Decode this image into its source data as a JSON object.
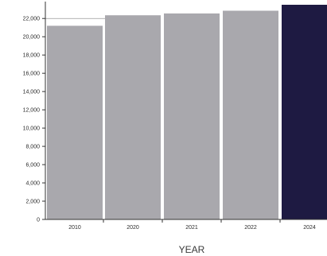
{
  "chart_data": {
    "type": "bar",
    "title": "",
    "xlabel": "YEAR",
    "ylabel": "",
    "categories": [
      "2010",
      "2020",
      "2021",
      "2022",
      "2024"
    ],
    "values": [
      21200,
      22350,
      22550,
      22850,
      23500
    ],
    "ylim": [
      0,
      23500
    ],
    "yticks": [
      0,
      2000,
      4000,
      6000,
      8000,
      10000,
      12000,
      14000,
      16000,
      18000,
      20000,
      22000
    ],
    "ytick_labels": [
      "0",
      "2,000",
      "4,000",
      "6,000",
      "8,000",
      "10,000",
      "12,000",
      "14,000",
      "16,000",
      "18,000",
      "20,000",
      "22,000"
    ],
    "grid": false,
    "legend": "none",
    "colors": {
      "bar": "#a9a8ad",
      "highlight": "#1e1a42",
      "axis": "#333333"
    },
    "highlight_index": 4
  }
}
